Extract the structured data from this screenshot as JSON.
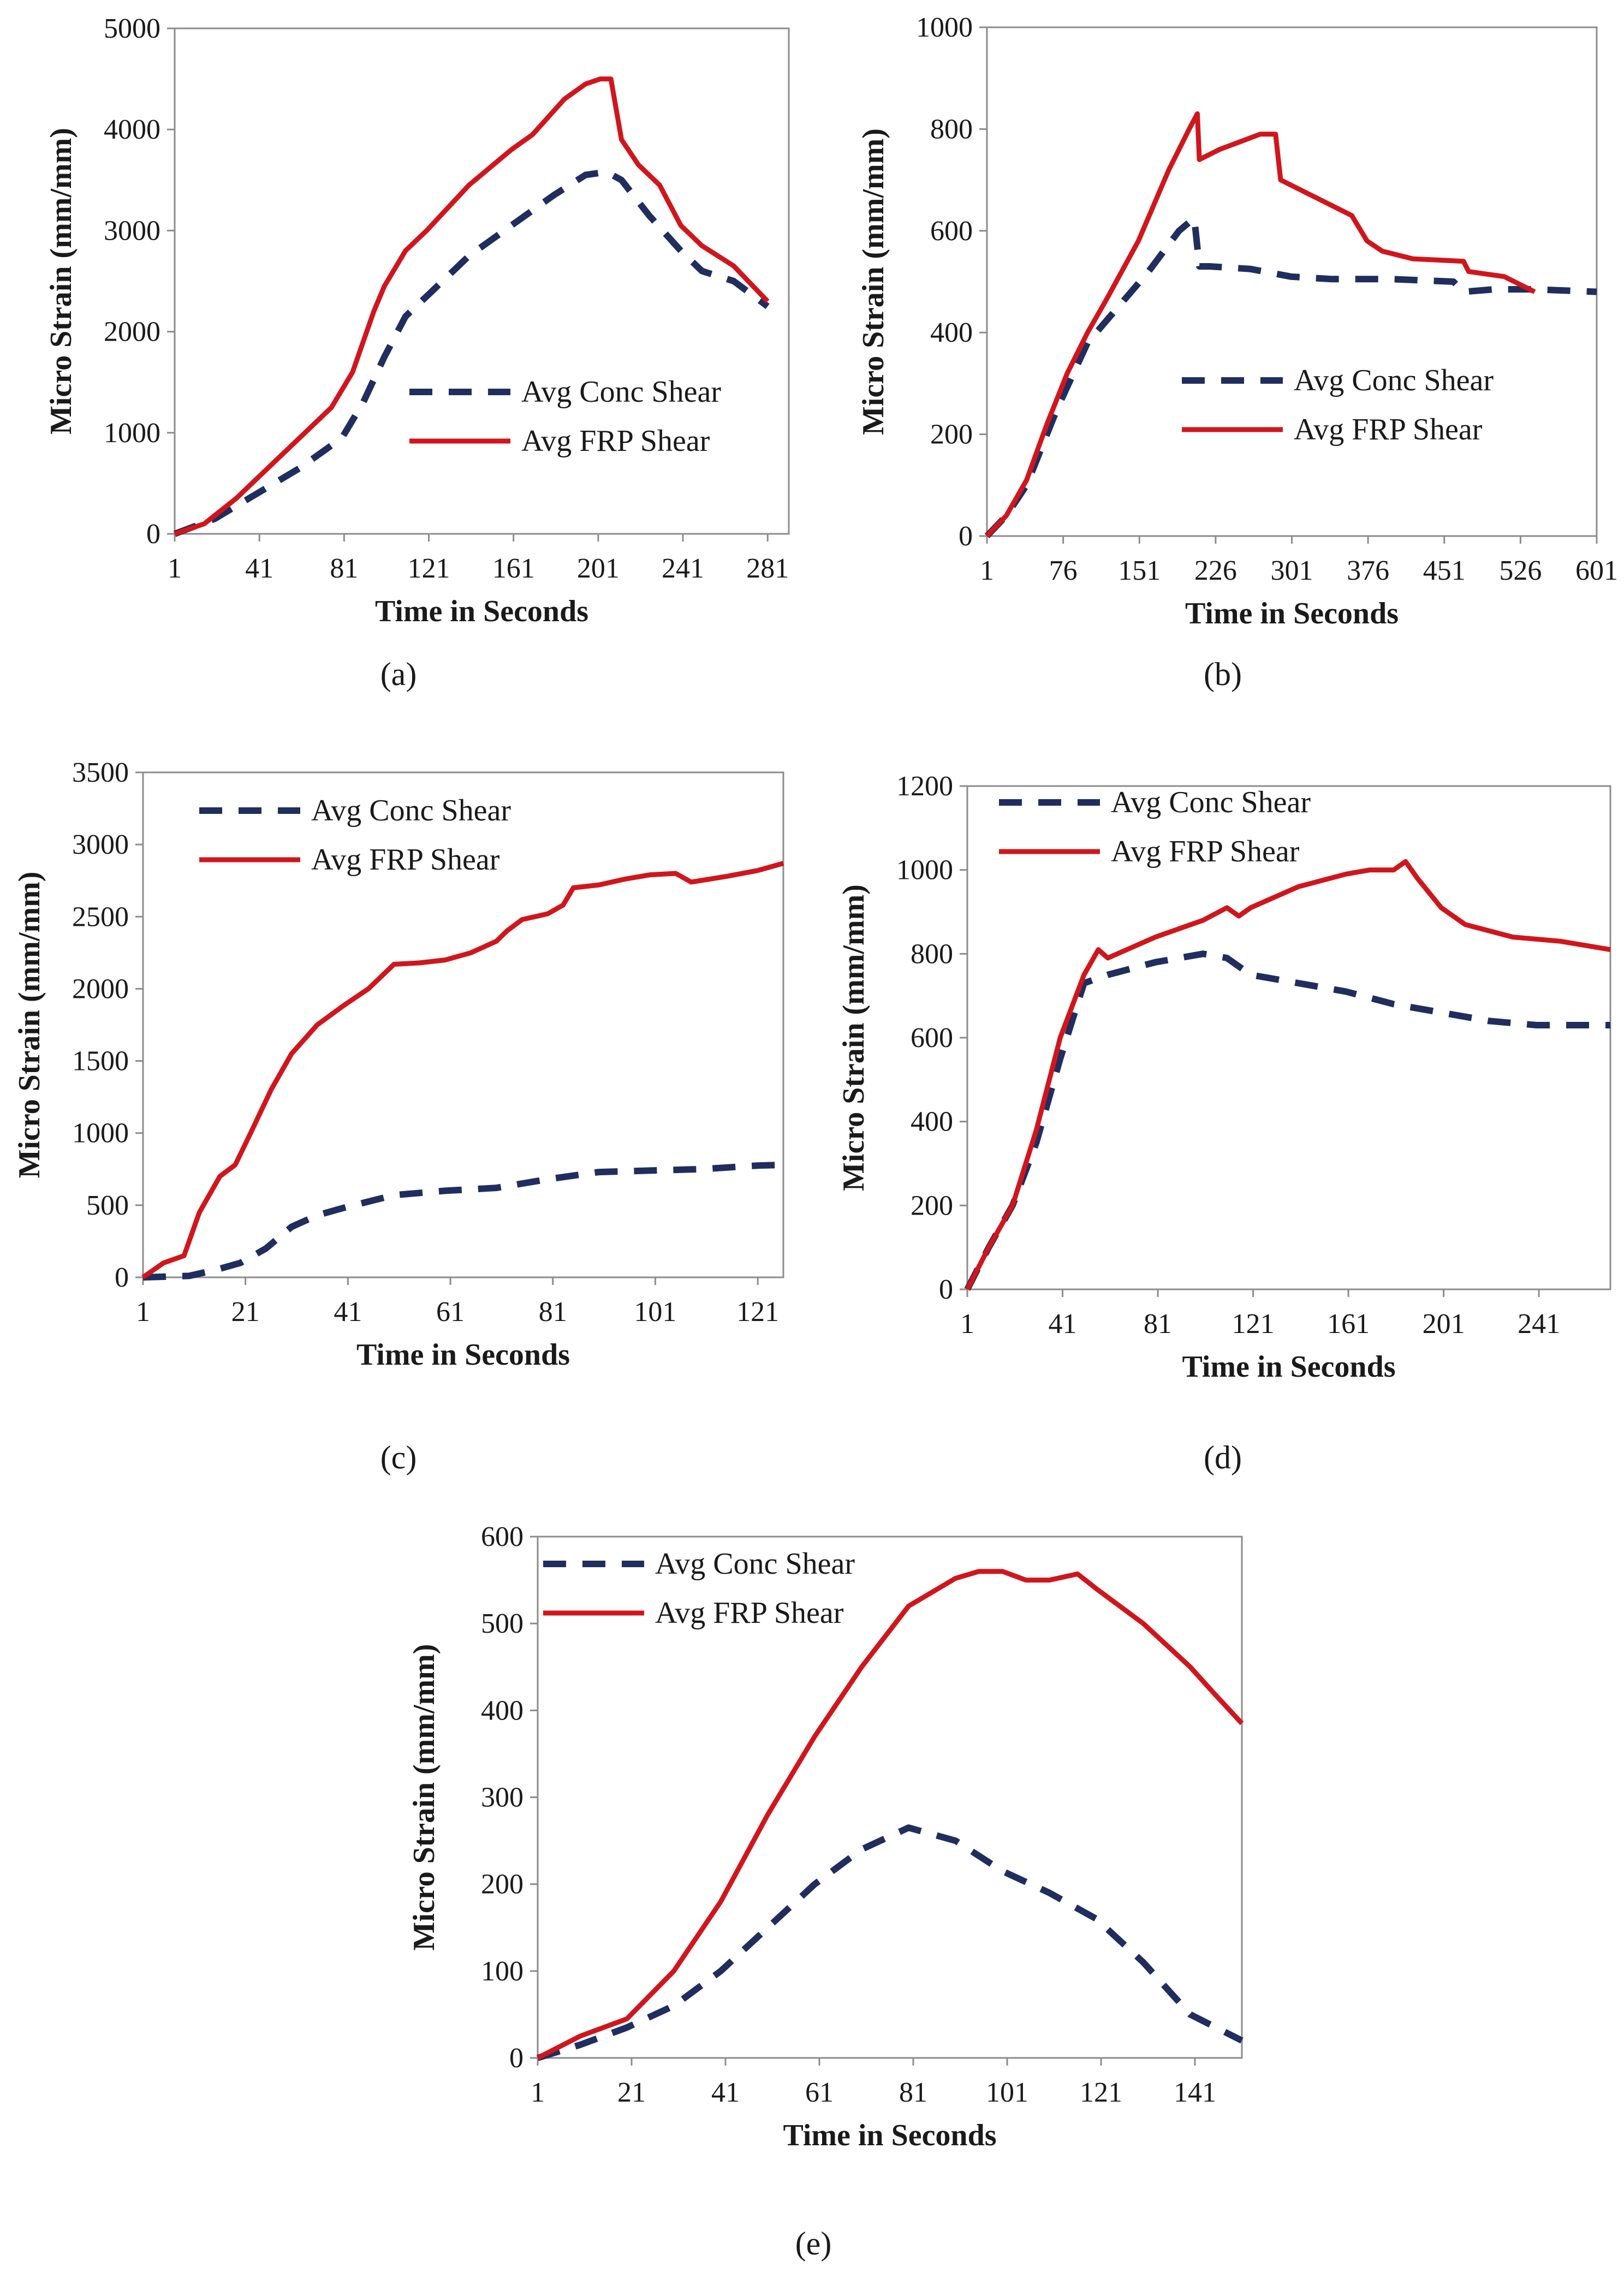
{
  "figure": {
    "series_colors": {
      "conc": "#1f2e5e",
      "frp": "#d0161c"
    }
  },
  "chart_data": [
    {
      "id": "a",
      "type": "line",
      "caption": "(a)",
      "xlabel": "Time in Seconds",
      "ylabel": "Micro Strain (mm/mm)",
      "xlim": [
        1,
        291
      ],
      "ylim": [
        0,
        5000
      ],
      "xticks": [
        1,
        41,
        81,
        121,
        161,
        201,
        241,
        281
      ],
      "yticks": [
        0,
        1000,
        2000,
        3000,
        4000,
        5000
      ],
      "legend_position": "right",
      "series": [
        {
          "name": "Avg Conc Shear",
          "style": "dashed",
          "x": [
            1,
            20,
            40,
            60,
            80,
            90,
            100,
            110,
            120,
            140,
            160,
            180,
            195,
            205,
            212,
            225,
            240,
            250,
            265,
            281
          ],
          "y": [
            0,
            150,
            400,
            650,
            950,
            1300,
            1750,
            2150,
            2350,
            2750,
            3050,
            3350,
            3550,
            3580,
            3500,
            3150,
            2800,
            2600,
            2500,
            2250
          ]
        },
        {
          "name": "Avg FRP Shear",
          "style": "solid",
          "x": [
            1,
            15,
            30,
            45,
            60,
            75,
            85,
            95,
            100,
            110,
            120,
            140,
            160,
            170,
            185,
            195,
            202,
            207,
            212,
            220,
            230,
            240,
            250,
            265,
            281
          ],
          "y": [
            0,
            100,
            350,
            650,
            950,
            1250,
            1600,
            2200,
            2450,
            2800,
            3000,
            3450,
            3800,
            3950,
            4300,
            4450,
            4500,
            4500,
            3900,
            3650,
            3450,
            3050,
            2850,
            2650,
            2300
          ]
        }
      ]
    },
    {
      "id": "b",
      "type": "line",
      "caption": "(b)",
      "xlabel": "Time in Seconds",
      "ylabel": "Micro Strain (mm/mm)",
      "xlim": [
        1,
        601
      ],
      "ylim": [
        0,
        1000
      ],
      "xticks": [
        1,
        76,
        151,
        226,
        301,
        376,
        451,
        526,
        601
      ],
      "yticks": [
        0,
        200,
        400,
        600,
        800,
        1000
      ],
      "legend_position": "right",
      "series": [
        {
          "name": "Avg Conc Shear",
          "style": "dashed",
          "x": [
            1,
            20,
            40,
            70,
            100,
            130,
            160,
            190,
            205,
            210,
            220,
            260,
            300,
            340,
            400,
            460,
            470,
            500,
            540,
            601
          ],
          "y": [
            0,
            40,
            100,
            250,
            380,
            450,
            520,
            600,
            625,
            530,
            530,
            525,
            510,
            505,
            505,
            500,
            480,
            485,
            485,
            480
          ]
        },
        {
          "name": "Avg FRP Shear",
          "style": "solid",
          "x": [
            1,
            20,
            40,
            60,
            80,
            100,
            120,
            150,
            180,
            200,
            208,
            210,
            230,
            270,
            285,
            290,
            320,
            360,
            375,
            390,
            420,
            470,
            475,
            510,
            540
          ],
          "y": [
            0,
            40,
            110,
            220,
            320,
            400,
            470,
            580,
            720,
            800,
            830,
            740,
            760,
            790,
            790,
            700,
            670,
            630,
            580,
            560,
            545,
            540,
            520,
            510,
            480
          ]
        }
      ]
    },
    {
      "id": "c",
      "type": "line",
      "caption": "(c)",
      "xlabel": "Time in Seconds",
      "ylabel": "Micro Strain (mm/mm)",
      "xlim": [
        1,
        126
      ],
      "ylim": [
        0,
        3500
      ],
      "xticks": [
        1,
        21,
        41,
        61,
        81,
        101,
        121
      ],
      "yticks": [
        0,
        500,
        1000,
        1500,
        2000,
        2500,
        3000,
        3500
      ],
      "legend_position": "top-left",
      "series": [
        {
          "name": "Avg Conc Shear",
          "style": "dashed",
          "x": [
            1,
            10,
            15,
            20,
            25,
            30,
            35,
            40,
            50,
            60,
            70,
            80,
            90,
            100,
            110,
            121,
            126
          ],
          "y": [
            0,
            10,
            50,
            100,
            200,
            350,
            430,
            480,
            570,
            600,
            620,
            680,
            730,
            740,
            750,
            775,
            780
          ]
        },
        {
          "name": "Avg FRP Shear",
          "style": "solid",
          "x": [
            1,
            5,
            9,
            12,
            16,
            19,
            22,
            26,
            30,
            35,
            40,
            45,
            50,
            55,
            60,
            65,
            70,
            72,
            75,
            80,
            83,
            85,
            90,
            95,
            100,
            105,
            108,
            115,
            121,
            126
          ],
          "y": [
            0,
            100,
            150,
            450,
            700,
            780,
            1000,
            1300,
            1550,
            1750,
            1880,
            2000,
            2170,
            2180,
            2200,
            2250,
            2330,
            2400,
            2480,
            2520,
            2580,
            2700,
            2720,
            2760,
            2790,
            2800,
            2740,
            2780,
            2820,
            2870
          ]
        }
      ]
    },
    {
      "id": "d",
      "type": "line",
      "caption": "(d)",
      "xlabel": "Time in Seconds",
      "ylabel": "Micro Strain (mm/mm)",
      "xlim": [
        1,
        271
      ],
      "ylim": [
        0,
        1200
      ],
      "xticks": [
        1,
        41,
        81,
        121,
        161,
        201,
        241
      ],
      "yticks": [
        0,
        200,
        400,
        600,
        800,
        1000,
        1200
      ],
      "legend_position": "top-left",
      "series": [
        {
          "name": "Avg Conc Shear",
          "style": "dashed",
          "x": [
            1,
            10,
            20,
            30,
            40,
            50,
            60,
            80,
            100,
            110,
            120,
            140,
            160,
            180,
            200,
            220,
            240,
            271
          ],
          "y": [
            0,
            100,
            200,
            350,
            550,
            730,
            750,
            780,
            800,
            790,
            750,
            730,
            710,
            680,
            660,
            640,
            630,
            630
          ]
        },
        {
          "name": "Avg FRP Shear",
          "style": "solid",
          "x": [
            1,
            10,
            20,
            30,
            40,
            50,
            56,
            60,
            80,
            100,
            110,
            115,
            120,
            140,
            160,
            170,
            180,
            185,
            190,
            200,
            210,
            230,
            250,
            271
          ],
          "y": [
            0,
            100,
            200,
            380,
            600,
            750,
            810,
            790,
            840,
            880,
            910,
            890,
            910,
            960,
            990,
            1000,
            1000,
            1020,
            980,
            910,
            870,
            840,
            830,
            810
          ]
        }
      ]
    },
    {
      "id": "e",
      "type": "line",
      "caption": "(e)",
      "xlabel": "Time in Seconds",
      "ylabel": "Micro Strain (mm/mm)",
      "xlim": [
        1,
        151
      ],
      "ylim": [
        0,
        600
      ],
      "xticks": [
        1,
        21,
        41,
        61,
        81,
        101,
        121,
        141
      ],
      "yticks": [
        0,
        100,
        200,
        300,
        400,
        500,
        600
      ],
      "legend_position": "top-left",
      "series": [
        {
          "name": "Avg Conc Shear",
          "style": "dashed",
          "x": [
            1,
            10,
            20,
            30,
            40,
            50,
            60,
            70,
            80,
            90,
            100,
            110,
            120,
            130,
            140,
            151
          ],
          "y": [
            0,
            15,
            35,
            60,
            100,
            150,
            200,
            240,
            265,
            250,
            215,
            190,
            160,
            110,
            50,
            20
          ]
        },
        {
          "name": "Avg FRP Shear",
          "style": "solid",
          "x": [
            1,
            10,
            20,
            30,
            40,
            50,
            60,
            70,
            80,
            90,
            95,
            100,
            105,
            110,
            116,
            120,
            130,
            140,
            145,
            151
          ],
          "y": [
            0,
            25,
            45,
            100,
            180,
            280,
            370,
            450,
            520,
            552,
            560,
            560,
            550,
            550,
            557,
            540,
            500,
            450,
            420,
            385
          ]
        }
      ]
    }
  ]
}
